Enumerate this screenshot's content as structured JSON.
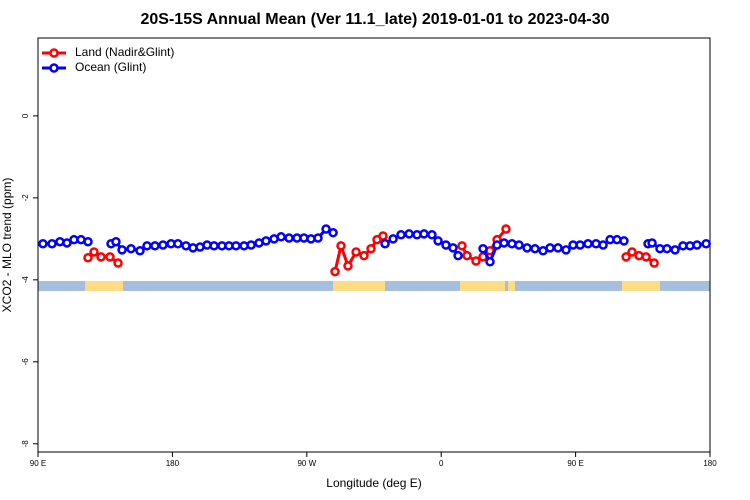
{
  "chart_data": {
    "type": "line",
    "title": "20S-15S Annual Mean (Ver 11.1_late)   2019-01-01 to 2023-04-30",
    "xlabel": "Longitude (deg E)",
    "ylabel": "XCO2 - MLO trend (ppm)",
    "xlim": [
      90,
      540
    ],
    "ylim": [
      -8.2,
      1.9
    ],
    "xticks": [
      {
        "value": 90,
        "label": "90 E"
      },
      180,
      {
        "value": 270,
        "label": "90 W"
      },
      {
        "value": 360,
        "label": "0"
      },
      {
        "value": 450,
        "label": "90 E"
      },
      {
        "value": 540,
        "label": "180"
      }
    ],
    "yticks": [
      0,
      -2,
      -4,
      -6,
      -8
    ],
    "legend": "upper left",
    "series": [
      {
        "name": "Land (Nadir&Glint)",
        "color": "#ff0000",
        "x": [
          123.5,
          127.5,
          132.2,
          138.2,
          143.6,
          200,
          288.9,
          292.9,
          297.6,
          303,
          308.3,
          313,
          317,
          321,
          350,
          373.9,
          377.3,
          383.3,
          388,
          392.7,
          397.4,
          403.4,
          450,
          483.8,
          487.8,
          492.5,
          497.2,
          502.6
        ],
        "values": [
          -3.46,
          -3.32,
          -3.44,
          -3.44,
          -3.59,
          null,
          -3.8,
          -3.17,
          -3.66,
          -3.32,
          -3.41,
          -3.24,
          -3.02,
          -2.93,
          null,
          -3.17,
          -3.41,
          -3.54,
          -3.44,
          -3.29,
          -3.02,
          -2.76,
          null,
          -3.44,
          -3.32,
          -3.41,
          -3.44,
          -3.59
        ]
      },
      {
        "name": "Ocean (Glint)",
        "color": "#0000ff",
        "x": [
          93.3,
          99.4,
          104.7,
          109.4,
          114.1,
          118.8,
          123.5,
          130,
          138.9,
          142.2,
          146.3,
          152.3,
          158.3,
          163,
          168.3,
          173.7,
          179.1,
          183.7,
          189.1,
          193.8,
          198.5,
          203.2,
          207.9,
          213.2,
          217.9,
          222.6,
          228,
          232.7,
          238,
          242.7,
          248.1,
          252.8,
          258.1,
          263.4,
          268.1,
          272.8,
          277.5,
          282.9,
          287.6,
          310,
          322.4,
          327.8,
          333.1,
          338.5,
          343.8,
          348.5,
          353.8,
          357.9,
          363.2,
          367.9,
          371.3,
          380,
          388,
          392.7,
          397.4,
          402.1,
          407.4,
          412.1,
          417.5,
          422.8,
          428.2,
          432.9,
          438.2,
          443.6,
          448.3,
          453,
          458.3,
          463.7,
          468.4,
          473.1,
          477.7,
          482.4,
          495,
          498.5,
          501.2,
          506.5,
          511.2,
          516.6,
          521.9,
          526.6,
          531.3,
          537.4
        ],
        "values": [
          -3.12,
          -3.12,
          -3.07,
          -3.1,
          -3.02,
          -3.02,
          -3.07,
          null,
          -3.12,
          -3.07,
          -3.27,
          -3.24,
          -3.29,
          -3.17,
          -3.17,
          -3.15,
          -3.12,
          -3.12,
          -3.17,
          -3.22,
          -3.2,
          -3.15,
          -3.17,
          -3.17,
          -3.17,
          -3.17,
          -3.17,
          -3.15,
          -3.1,
          -3.05,
          -3,
          -2.95,
          -2.98,
          -2.98,
          -2.98,
          -3,
          -2.98,
          -2.76,
          -2.85,
          null,
          -3.12,
          -3,
          -2.9,
          -2.88,
          -2.9,
          -2.88,
          -2.9,
          -3.05,
          -3.15,
          -3.22,
          -3.41,
          null,
          -3.24,
          -3.56,
          -3.15,
          -3.1,
          -3.12,
          -3.15,
          -3.22,
          -3.24,
          -3.29,
          -3.22,
          -3.22,
          -3.27,
          -3.15,
          -3.15,
          -3.12,
          -3.12,
          -3.15,
          -3.02,
          -3.02,
          -3.05,
          null,
          -3.12,
          -3.1,
          -3.24,
          -3.24,
          -3.27,
          -3.17,
          -3.17,
          -3.15,
          -3.12
        ]
      }
    ]
  }
}
